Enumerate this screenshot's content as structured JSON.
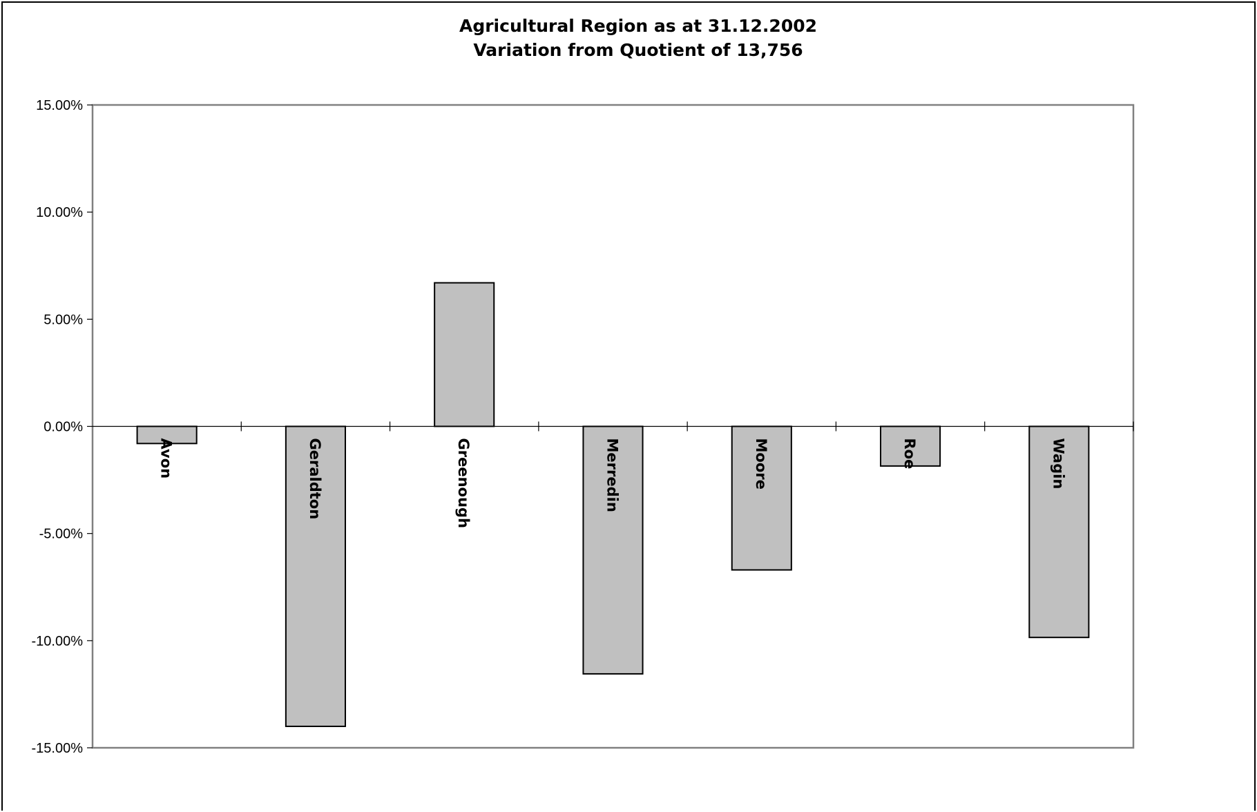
{
  "chart_data": {
    "type": "bar",
    "title": "Agricultural Region as at 31.12.2002",
    "subtitle": "Variation from Quotient of 13,756",
    "xlabel": "",
    "ylabel": "",
    "categories": [
      "Avon",
      "Geraldton",
      "Greenough",
      "Merredin",
      "Moore",
      "Roe",
      "Wagin"
    ],
    "values": [
      -0.8,
      -14.0,
      6.7,
      -11.55,
      -6.7,
      -1.85,
      -9.85
    ],
    "ylim": [
      -15,
      15
    ],
    "yticks": [
      15,
      10,
      5,
      0,
      -5,
      -10,
      -15
    ],
    "ytick_labels": [
      "15.00%",
      "10.00%",
      "5.00%",
      "0.00%",
      "-5.00%",
      "-10.00%",
      "-15.00%"
    ],
    "grid": false,
    "legend": "none",
    "bar_color": "#c0c0c0",
    "bar_edge_color": "#000000",
    "plot_border_color": "#808080"
  }
}
